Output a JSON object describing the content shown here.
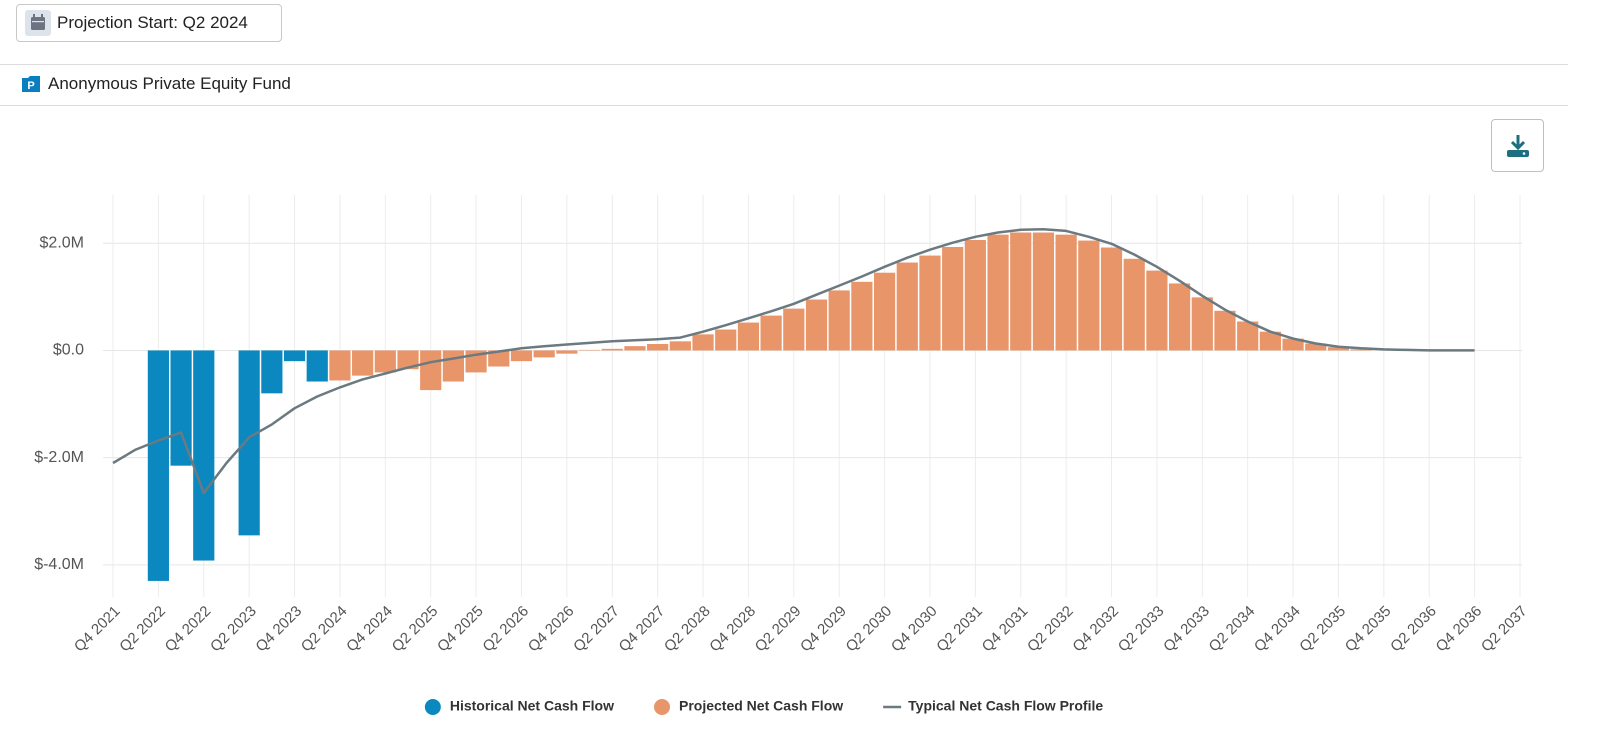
{
  "projection_button": "Projection Start: Q2 2024",
  "fund_name": "Anonymous Private Equity Fund",
  "chart_data": {
    "type": "bar",
    "categories": [
      "Q4 2021",
      null,
      "Q2 2022",
      null,
      "Q4 2022",
      null,
      "Q2 2023",
      null,
      "Q4 2023",
      null,
      "Q2 2024",
      null,
      "Q4 2024",
      null,
      "Q2 2025",
      null,
      "Q4 2025",
      null,
      "Q2 2026",
      null,
      "Q4 2026",
      null,
      "Q2 2027",
      null,
      "Q4 2027",
      null,
      "Q2 2028",
      null,
      "Q4 2028",
      null,
      "Q2 2029",
      null,
      "Q4 2029",
      null,
      "Q2 2030",
      null,
      "Q4 2030",
      null,
      "Q2 2031",
      null,
      "Q4 2031",
      null,
      "Q2 2032",
      null,
      "Q4 2032",
      null,
      "Q2 2033",
      null,
      "Q4 2033",
      null,
      "Q2 2034",
      null,
      "Q4 2034",
      null,
      "Q2 2035",
      null,
      "Q4 2035",
      null,
      "Q2 2036",
      null,
      "Q4 2036",
      null,
      "Q2 2037"
    ],
    "series": [
      {
        "name": "Historical Net Cash Flow",
        "type": "bar",
        "color": "#0a88bf",
        "values": [
          null,
          null,
          -4.3,
          -2.15,
          -3.92,
          null,
          -3.45,
          -0.8,
          -0.2,
          -0.58,
          null,
          null,
          null,
          null,
          null,
          null,
          null,
          null,
          null,
          null,
          null,
          null,
          null,
          null,
          null,
          null,
          null,
          null,
          null,
          null,
          null,
          null,
          null,
          null,
          null,
          null,
          null,
          null,
          null,
          null,
          null,
          null,
          null,
          null,
          null,
          null,
          null,
          null,
          null,
          null,
          null,
          null,
          null,
          null,
          null,
          null,
          null,
          null,
          null,
          null,
          null,
          null,
          null
        ]
      },
      {
        "name": "Projected Net Cash Flow",
        "type": "bar",
        "color": "#e8956a",
        "values": [
          null,
          null,
          null,
          null,
          null,
          null,
          null,
          null,
          null,
          null,
          -0.56,
          -0.47,
          -0.41,
          -0.35,
          -0.74,
          -0.58,
          -0.41,
          -0.3,
          -0.2,
          -0.13,
          -0.06,
          0.01,
          0.03,
          0.08,
          0.12,
          0.17,
          0.3,
          0.39,
          0.52,
          0.65,
          0.78,
          0.95,
          1.12,
          1.28,
          1.45,
          1.64,
          1.77,
          1.93,
          2.06,
          2.16,
          2.2,
          2.2,
          2.16,
          2.05,
          1.92,
          1.71,
          1.49,
          1.25,
          0.99,
          0.74,
          0.54,
          0.35,
          0.22,
          0.13,
          0.06,
          0.02,
          null,
          null,
          null,
          null,
          null,
          null,
          null
        ]
      },
      {
        "name": "Typical Net Cash Flow Profile",
        "type": "line",
        "color": "#6b7a80",
        "values": [
          -2.1,
          -1.85,
          -1.68,
          -1.53,
          -2.66,
          -2.1,
          -1.62,
          -1.38,
          -1.08,
          -0.86,
          -0.69,
          -0.54,
          -0.43,
          -0.32,
          -0.22,
          -0.15,
          -0.08,
          -0.02,
          0.04,
          0.08,
          0.11,
          0.14,
          0.17,
          0.19,
          0.21,
          0.24,
          0.35,
          0.47,
          0.6,
          0.73,
          0.87,
          1.04,
          1.21,
          1.38,
          1.56,
          1.73,
          1.88,
          2.01,
          2.12,
          2.2,
          2.25,
          2.26,
          2.23,
          2.12,
          1.99,
          1.79,
          1.56,
          1.3,
          1.02,
          0.76,
          0.54,
          0.35,
          0.22,
          0.13,
          0.07,
          0.04,
          0.02,
          0.01,
          0,
          0,
          0,
          null,
          null
        ]
      }
    ],
    "ylim": [
      -4.6,
      2.9
    ],
    "yticks": [
      {
        "value": -4,
        "label": "$-4.0M"
      },
      {
        "value": -2,
        "label": "$-2.0M"
      },
      {
        "value": 0,
        "label": "$0.0"
      },
      {
        "value": 2,
        "label": "$2.0M"
      }
    ],
    "grid": true,
    "legend": "bottom"
  }
}
